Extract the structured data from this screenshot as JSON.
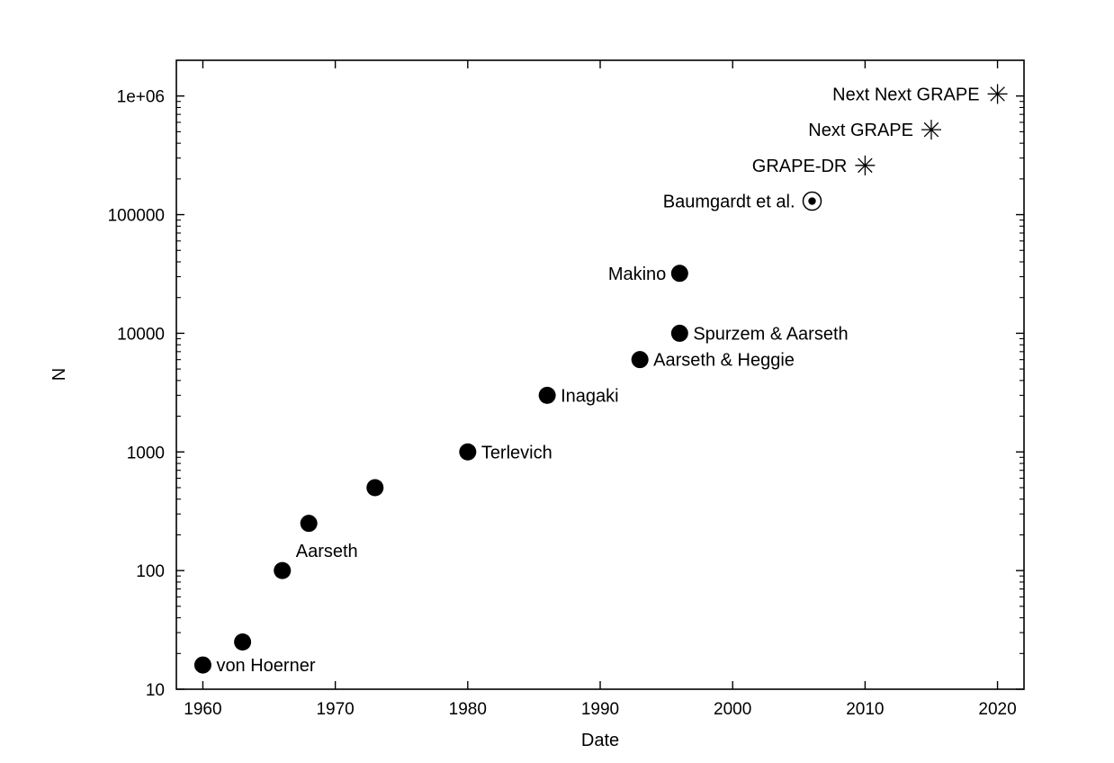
{
  "chart_data": {
    "type": "scatter",
    "title": "",
    "xlabel": "Date",
    "ylabel": "N",
    "xlim": [
      1958,
      2022
    ],
    "ylim": [
      10,
      2000000
    ],
    "yscale": "log",
    "grid": false,
    "x_ticks": [
      {
        "value": 1960,
        "label": "1960"
      },
      {
        "value": 1970,
        "label": "1970"
      },
      {
        "value": 1980,
        "label": "1980"
      },
      {
        "value": 1990,
        "label": "1990"
      },
      {
        "value": 2000,
        "label": "2000"
      },
      {
        "value": 2010,
        "label": "2010"
      },
      {
        "value": 2020,
        "label": "2020"
      }
    ],
    "y_ticks": [
      {
        "value": 10,
        "label": "10"
      },
      {
        "value": 100,
        "label": "100"
      },
      {
        "value": 1000,
        "label": "1000"
      },
      {
        "value": 10000,
        "label": "10000"
      },
      {
        "value": 100000,
        "label": "100000"
      },
      {
        "value": 1000000,
        "label": "1e+06"
      }
    ],
    "points": [
      {
        "x": 1960,
        "y": 16,
        "label": "von Hoerner",
        "marker": "dot",
        "label_side": "right"
      },
      {
        "x": 1963,
        "y": 25,
        "label": "",
        "marker": "dot",
        "label_side": "right"
      },
      {
        "x": 1966,
        "y": 100,
        "label": "Aarseth",
        "marker": "dot",
        "label_side": "above-right"
      },
      {
        "x": 1968,
        "y": 250,
        "label": "",
        "marker": "dot",
        "label_side": "right"
      },
      {
        "x": 1973,
        "y": 500,
        "label": "",
        "marker": "dot",
        "label_side": "right"
      },
      {
        "x": 1980,
        "y": 1000,
        "label": "Terlevich",
        "marker": "dot",
        "label_side": "right"
      },
      {
        "x": 1986,
        "y": 3000,
        "label": "Inagaki",
        "marker": "dot",
        "label_side": "right"
      },
      {
        "x": 1993,
        "y": 6000,
        "label": "Aarseth & Heggie",
        "marker": "dot",
        "label_side": "right"
      },
      {
        "x": 1996,
        "y": 10000,
        "label": "Spurzem & Aarseth",
        "marker": "dot",
        "label_side": "right"
      },
      {
        "x": 1996,
        "y": 32000,
        "label": "Makino",
        "marker": "dot",
        "label_side": "left"
      },
      {
        "x": 2006,
        "y": 130000,
        "label": "Baumgardt et al.",
        "marker": "circled-dot",
        "label_side": "left"
      },
      {
        "x": 2010,
        "y": 260000,
        "label": "GRAPE-DR",
        "marker": "star",
        "label_side": "left"
      },
      {
        "x": 2015,
        "y": 520000,
        "label": "Next GRAPE",
        "marker": "star",
        "label_side": "left"
      },
      {
        "x": 2020,
        "y": 1040000,
        "label": "Next Next GRAPE",
        "marker": "star",
        "label_side": "left"
      }
    ]
  }
}
